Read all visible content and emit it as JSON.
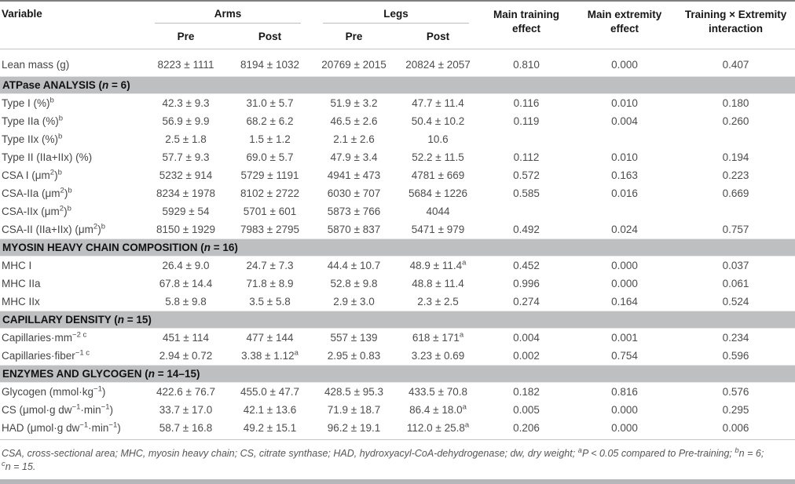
{
  "table": {
    "columns": {
      "variable": "Variable",
      "groups": [
        {
          "label": "Arms",
          "sub": [
            "Pre",
            "Post"
          ]
        },
        {
          "label": "Legs",
          "sub": [
            "Pre",
            "Post"
          ]
        }
      ],
      "stats": [
        "Main training effect",
        "Main extremity effect",
        "Training × Extremity interaction"
      ]
    },
    "rows": [
      {
        "type": "data",
        "label": "Lean mass (g)",
        "values": [
          "8223 ± 1111",
          "8194 ± 1032",
          "20769 ± 2015",
          "20824 ± 2057",
          "0.810",
          "0.000",
          "0.407"
        ]
      },
      {
        "type": "section",
        "label": "ATPase ANALYSIS (*n* = 6)"
      },
      {
        "type": "data",
        "label": "Type I (%)^{b}",
        "values": [
          "42.3 ± 9.3",
          "31.0 ± 5.7",
          "51.9 ± 3.2",
          "47.7 ± 11.4",
          "0.116",
          "0.010",
          "0.180"
        ]
      },
      {
        "type": "data",
        "label": "Type IIa (%)^{b}",
        "values": [
          "56.9 ± 9.9",
          "68.2 ± 6.2",
          "46.5 ± 2.6",
          "50.4 ± 10.2",
          "0.119",
          "0.004",
          "0.260"
        ]
      },
      {
        "type": "data",
        "label": "Type IIx (%)^{b}",
        "values": [
          "2.5 ± 1.8",
          "1.5 ± 1.2",
          "2.1 ± 2.6",
          "10.6",
          "",
          "",
          ""
        ]
      },
      {
        "type": "data",
        "label": "Type II (IIa+IIx) (%)",
        "values": [
          "57.7 ± 9.3",
          "69.0 ± 5.7",
          "47.9 ± 3.4",
          "52.2 ± 11.5",
          "0.112",
          "0.010",
          "0.194"
        ]
      },
      {
        "type": "data",
        "label": "CSA I (μm^{2})^{b}",
        "values": [
          "5232 ± 914",
          "5729 ± 1191",
          "4941 ± 473",
          "4781 ± 669",
          "0.572",
          "0.163",
          "0.223"
        ]
      },
      {
        "type": "data",
        "label": "CSA-IIa (μm^{2})^{b}",
        "values": [
          "8234 ± 1978",
          "8102 ± 2722",
          "6030 ± 707",
          "5684 ± 1226",
          "0.585",
          "0.016",
          "0.669"
        ]
      },
      {
        "type": "data",
        "label": "CSA-IIx (μm^{2})^{b}",
        "values": [
          "5929 ± 54",
          "5701 ± 601",
          "5873 ± 766",
          "4044",
          "",
          "",
          ""
        ]
      },
      {
        "type": "data",
        "label": "CSA-II (IIa+IIx) (μm^{2})^{b}",
        "values": [
          "8150 ± 1929",
          "7983 ± 2795",
          "5870 ± 837",
          "5471 ± 979",
          "0.492",
          "0.024",
          "0.757"
        ]
      },
      {
        "type": "section",
        "label": "MYOSIN HEAVY CHAIN COMPOSITION (*n* = 16)"
      },
      {
        "type": "data",
        "label": "MHC I",
        "values": [
          "26.4 ± 9.0",
          "24.7 ± 7.3",
          "44.4 ± 10.7",
          "48.9 ± 11.4^{a}",
          "0.452",
          "0.000",
          "0.037"
        ]
      },
      {
        "type": "data",
        "label": "MHC IIa",
        "values": [
          "67.8 ± 14.4",
          "71.8 ± 8.9",
          "52.8 ± 9.8",
          "48.8 ± 11.4",
          "0.996",
          "0.000",
          "0.061"
        ]
      },
      {
        "type": "data",
        "label": "MHC IIx",
        "values": [
          "5.8 ± 9.8",
          "3.5 ± 5.8",
          "2.9 ± 3.0",
          "2.3 ± 2.5",
          "0.274",
          "0.164",
          "0.524"
        ]
      },
      {
        "type": "section",
        "label": "CAPILLARY DENSITY (*n* = 15)"
      },
      {
        "type": "data",
        "label": "Capillaries·mm^{−2 c}",
        "values": [
          "451 ± 114",
          "477 ± 144",
          "557 ± 139",
          "618 ± 171^{a}",
          "0.004",
          "0.001",
          "0.234"
        ]
      },
      {
        "type": "data",
        "label": "Capillaries·fiber^{−1 c}",
        "values": [
          "2.94 ± 0.72",
          "3.38 ± 1.12^{a}",
          "2.95 ± 0.83",
          "3.23 ± 0.69",
          "0.002",
          "0.754",
          "0.596"
        ]
      },
      {
        "type": "section",
        "label": "ENZYMES AND GLYCOGEN (*n* = 14–15)"
      },
      {
        "type": "data",
        "label": "Glycogen (mmol·kg^{−1})",
        "values": [
          "422.6 ± 76.7",
          "455.0 ± 47.7",
          "428.5 ± 95.3",
          "433.5 ± 70.8",
          "0.182",
          "0.816",
          "0.576"
        ]
      },
      {
        "type": "data",
        "label": "CS (μmol·g dw^{−1}·min^{−1})",
        "values": [
          "33.7 ± 17.0",
          "42.1 ± 13.6",
          "71.9 ± 18.7",
          "86.4 ± 18.0^{a}",
          "0.005",
          "0.000",
          "0.295"
        ]
      },
      {
        "type": "data",
        "label": "HAD (μmol·g dw^{−1}·min^{−1})",
        "values": [
          "58.7 ± 16.8",
          "49.2 ± 15.1",
          "96.2 ± 19.1",
          "112.0 ± 25.8^{a}",
          "0.206",
          "0.000",
          "0.006"
        ]
      }
    ],
    "footnotes": [
      "CSA, cross-sectional area; MHC, myosin heavy chain; CS, citrate synthase; HAD, hydroxyacyl-CoA-dehydrogenase; dw, dry weight; ^{a}P < 0.05 compared to Pre-training; ^{b}n = 6;",
      "^{c}n = 15."
    ]
  }
}
